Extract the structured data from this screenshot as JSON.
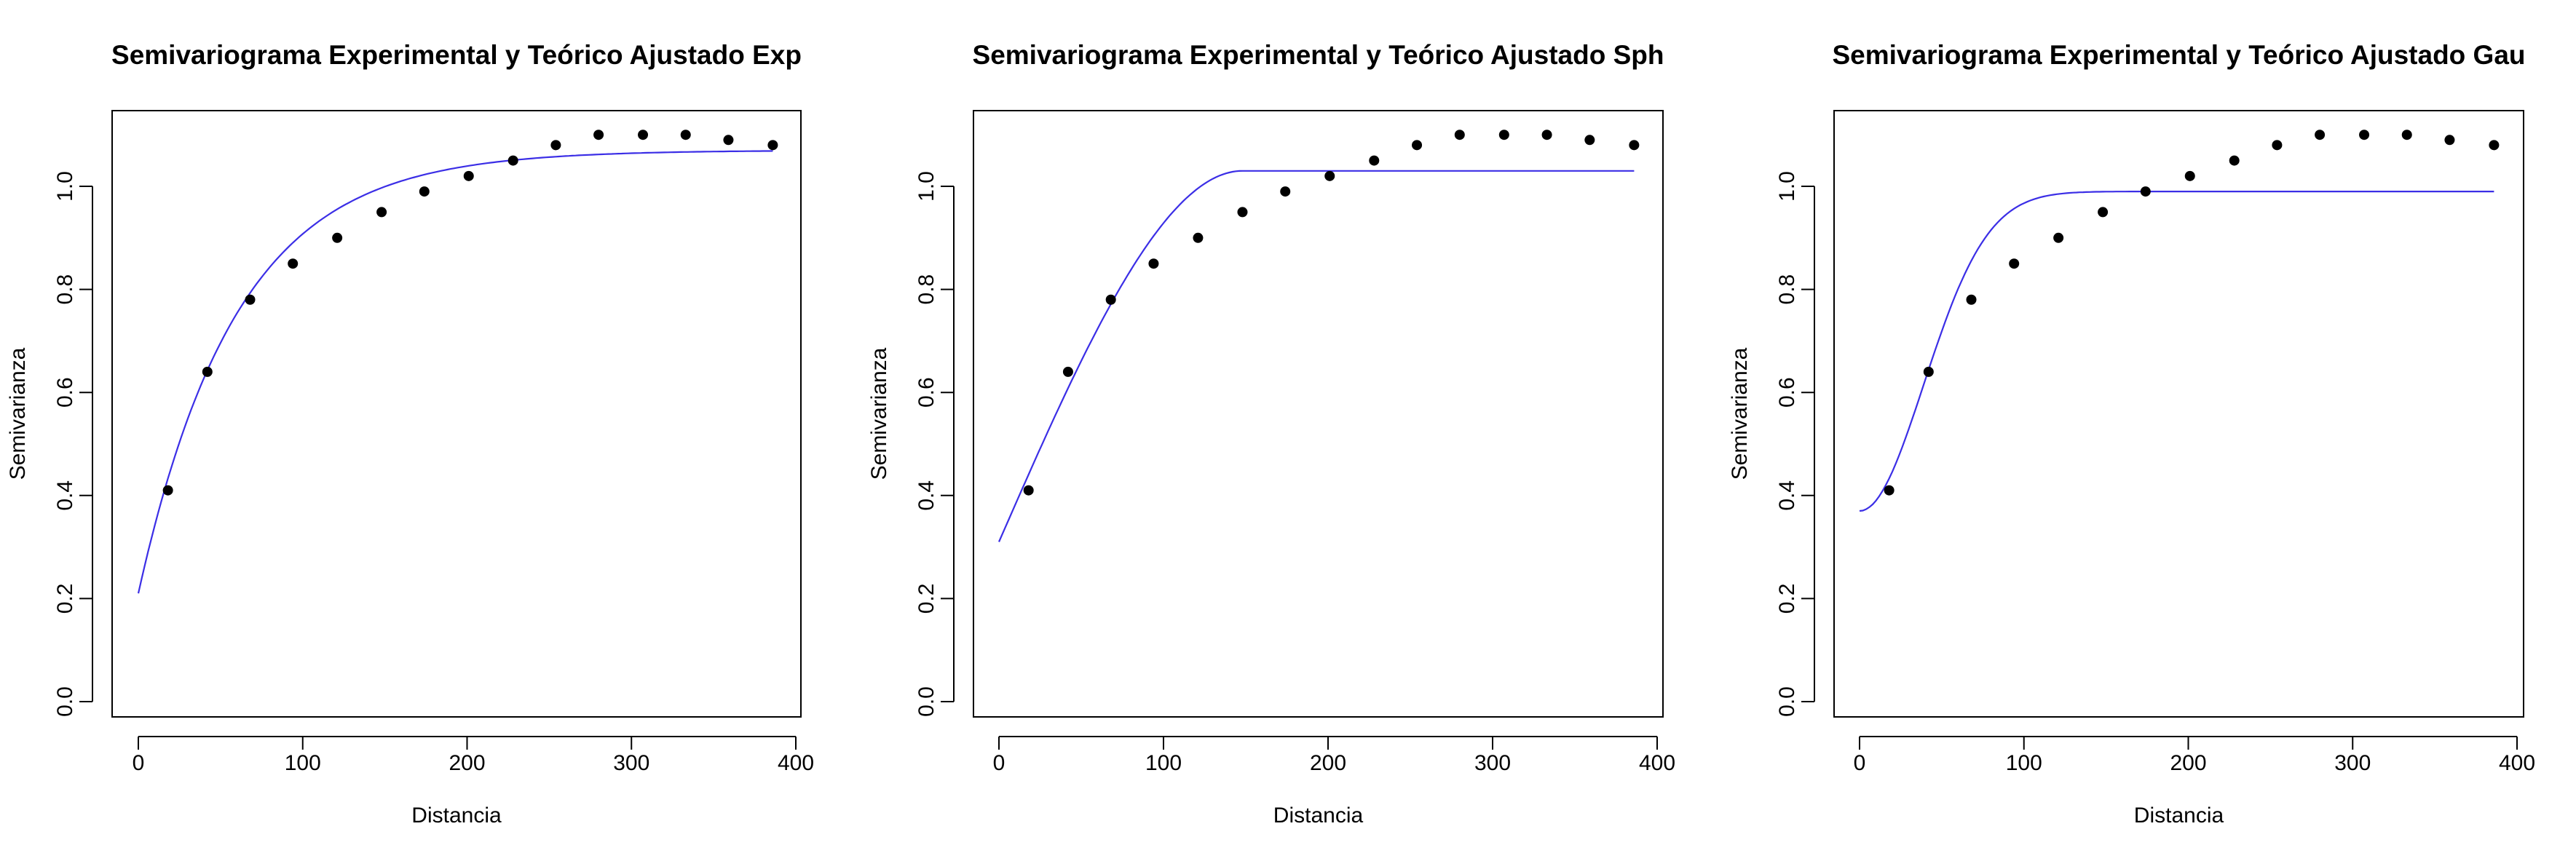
{
  "colors": {
    "curve": "#3b2ee6",
    "points": "#000000",
    "axes": "#000000"
  },
  "chart_data": [
    {
      "type": "scatter",
      "title": "Semivariograma Experimental y Teórico Ajustado Exp",
      "xlabel": "Distancia",
      "ylabel": "Semivarianza",
      "xlim": [
        0,
        400
      ],
      "ylim": [
        0.0,
        1.1
      ],
      "xticks": [
        "0",
        "100",
        "200",
        "300",
        "400"
      ],
      "yticks": [
        "0.0",
        "0.2",
        "0.4",
        "0.6",
        "0.8",
        "1.0"
      ],
      "grid": false,
      "experimental": {
        "x": [
          18,
          42,
          68,
          94,
          121,
          148,
          174,
          201,
          228,
          254,
          280,
          307,
          333,
          359,
          386
        ],
        "y": [
          0.41,
          0.64,
          0.78,
          0.85,
          0.9,
          0.95,
          0.99,
          1.02,
          1.05,
          1.08,
          1.1,
          1.1,
          1.1,
          1.09,
          1.08
        ]
      },
      "model": {
        "name": "Exp",
        "nugget": 0.21,
        "sill": 1.07,
        "range": 60
      }
    },
    {
      "type": "scatter",
      "title": "Semivariograma Experimental y Teórico Ajustado Sph",
      "xlabel": "Distancia",
      "ylabel": "Semivarianza",
      "xlim": [
        0,
        400
      ],
      "ylim": [
        0.0,
        1.1
      ],
      "xticks": [
        "0",
        "100",
        "200",
        "300",
        "400"
      ],
      "yticks": [
        "0.0",
        "0.2",
        "0.4",
        "0.6",
        "0.8",
        "1.0"
      ],
      "grid": false,
      "experimental": {
        "x": [
          18,
          42,
          68,
          94,
          121,
          148,
          174,
          201,
          228,
          254,
          280,
          307,
          333,
          359,
          386
        ],
        "y": [
          0.41,
          0.64,
          0.78,
          0.85,
          0.9,
          0.95,
          0.99,
          1.02,
          1.05,
          1.08,
          1.1,
          1.1,
          1.1,
          1.09,
          1.08
        ]
      },
      "model": {
        "name": "Sph",
        "nugget": 0.31,
        "sill": 1.03,
        "range": 148
      }
    },
    {
      "type": "scatter",
      "title": "Semivariograma Experimental y Teórico Ajustado Gau",
      "xlabel": "Distancia",
      "ylabel": "Semivarianza",
      "xlim": [
        0,
        400
      ],
      "ylim": [
        0.0,
        1.1
      ],
      "xticks": [
        "0",
        "100",
        "200",
        "300",
        "400"
      ],
      "yticks": [
        "0.0",
        "0.2",
        "0.4",
        "0.6",
        "0.8",
        "1.0"
      ],
      "grid": false,
      "experimental": {
        "x": [
          18,
          42,
          68,
          94,
          121,
          148,
          174,
          201,
          228,
          254,
          280,
          307,
          333,
          359,
          386
        ],
        "y": [
          0.41,
          0.64,
          0.78,
          0.85,
          0.9,
          0.95,
          0.99,
          1.02,
          1.05,
          1.08,
          1.1,
          1.1,
          1.1,
          1.09,
          1.08
        ]
      },
      "model": {
        "name": "Gau",
        "nugget": 0.37,
        "sill": 0.99,
        "range": 55
      }
    }
  ]
}
